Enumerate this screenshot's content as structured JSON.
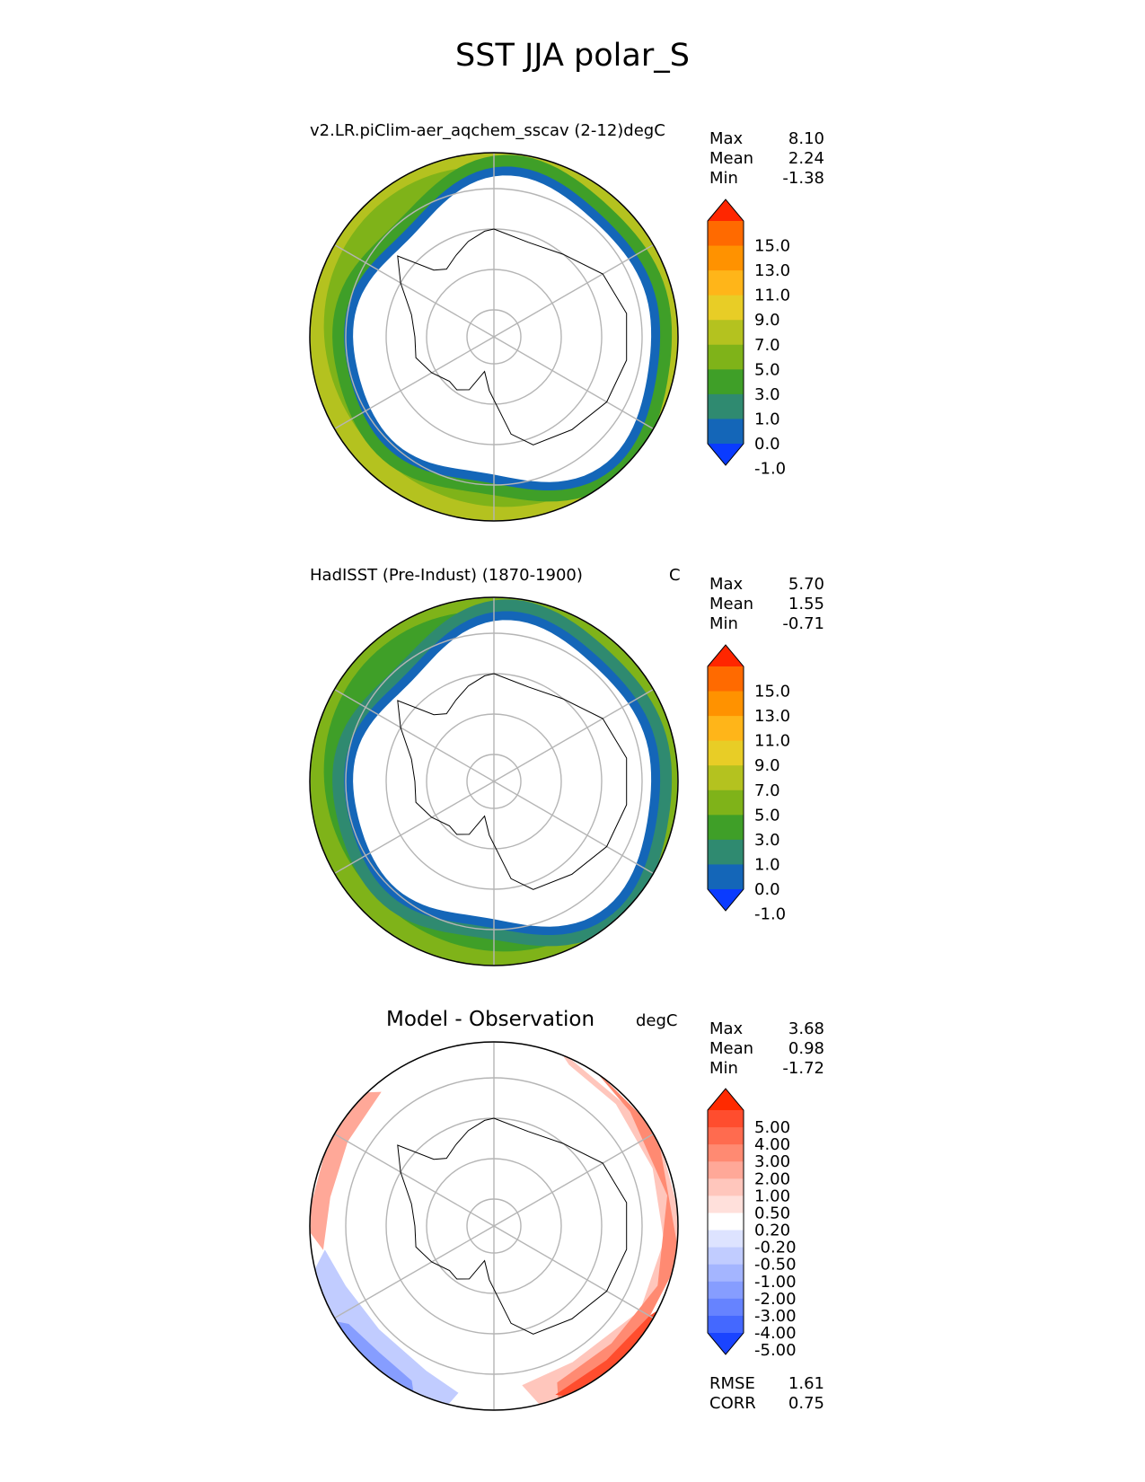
{
  "figure": {
    "title": "SST JJA polar_S"
  },
  "chart_data": [
    {
      "type": "heatmap",
      "projection": "south-polar-stereographic",
      "title": "v2.LR.piClim-aer_aqchem_sscav (2-12)degC",
      "units": "",
      "stats": [
        {
          "label": "Max",
          "value": "8.10"
        },
        {
          "label": "Mean",
          "value": "2.24"
        },
        {
          "label": "Min",
          "value": "-1.38"
        }
      ],
      "colorbar": {
        "levels": [
          "15.0",
          "13.0",
          "11.0",
          "9.0",
          "7.0",
          "5.0",
          "3.0",
          "1.0",
          "0.0",
          "-1.0"
        ],
        "colors": [
          "#ff2600",
          "#ff6a00",
          "#ff9200",
          "#ffb519",
          "#e8cd26",
          "#b4c21f",
          "#7fb319",
          "#3f9f28",
          "#2f8a70",
          "#1466b8",
          "#0a3bff"
        ],
        "extend": "both"
      },
      "region_colors": {
        "ice": "#ffffff",
        "coast": "#1466b8",
        "inner": "#3f9f28",
        "outer": "#7fb319",
        "warm": "#b4c21f"
      }
    },
    {
      "type": "heatmap",
      "projection": "south-polar-stereographic",
      "title": "HadISST (Pre-Indust) (1870-1900)",
      "units": "C",
      "stats": [
        {
          "label": "Max",
          "value": "5.70"
        },
        {
          "label": "Mean",
          "value": "1.55"
        },
        {
          "label": "Min",
          "value": "-0.71"
        }
      ],
      "colorbar": {
        "levels": [
          "15.0",
          "13.0",
          "11.0",
          "9.0",
          "7.0",
          "5.0",
          "3.0",
          "1.0",
          "0.0",
          "-1.0"
        ],
        "colors": [
          "#ff2600",
          "#ff6a00",
          "#ff9200",
          "#ffb519",
          "#e8cd26",
          "#b4c21f",
          "#7fb319",
          "#3f9f28",
          "#2f8a70",
          "#1466b8",
          "#0a3bff"
        ],
        "extend": "both"
      },
      "region_colors": {
        "ice": "#ffffff",
        "coast": "#1466b8",
        "inner": "#2f8a70",
        "outer": "#3f9f28",
        "warm": "#7fb319"
      }
    },
    {
      "type": "heatmap",
      "projection": "south-polar-stereographic",
      "title": "Model - Observation",
      "units": "degC",
      "stats": [
        {
          "label": "Max",
          "value": "3.68"
        },
        {
          "label": "Mean",
          "value": "0.98"
        },
        {
          "label": "Min",
          "value": "-1.72"
        }
      ],
      "colorbar": {
        "levels": [
          "5.00",
          "4.00",
          "3.00",
          "2.00",
          "1.00",
          "0.50",
          "0.20",
          "-0.20",
          "-0.50",
          "-1.00",
          "-2.00",
          "-3.00",
          "-4.00",
          "-5.00"
        ],
        "colors": [
          "#ff2a00",
          "#ff4d2e",
          "#ff6b4f",
          "#ff8a72",
          "#ffa898",
          "#ffc6bc",
          "#ffe0db",
          "#ffffff",
          "#dde3ff",
          "#c1ccff",
          "#a4b5ff",
          "#869dff",
          "#6683ff",
          "#4468ff",
          "#1a44ff"
        ],
        "extend": "both"
      },
      "footer_stats": [
        {
          "label": "RMSE",
          "value": "1.61"
        },
        {
          "label": "CORR",
          "value": "0.75"
        }
      ]
    }
  ]
}
